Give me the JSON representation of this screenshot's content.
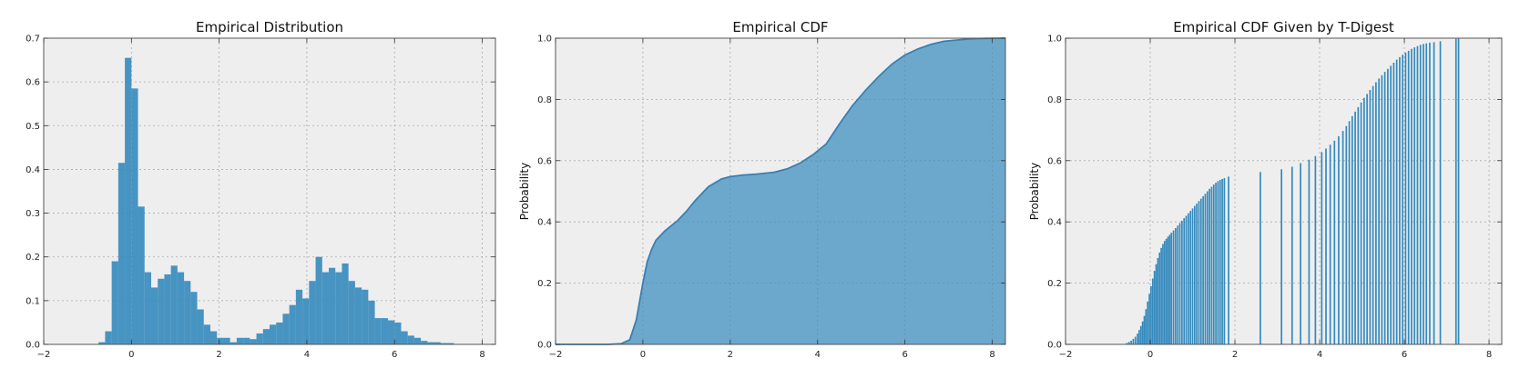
{
  "colors": {
    "histogram_fill": "#348abd",
    "cdf_fill": "#348abd",
    "cdf_line": "#3a7fb0",
    "tdigest_bar": "#348abd"
  },
  "chart_data": [
    {
      "type": "bar",
      "title": "Empirical Distribution",
      "xlabel": "",
      "ylabel": "",
      "xlim": [
        -2,
        8.3
      ],
      "ylim": [
        0,
        0.7
      ],
      "xticks": [
        -2,
        0,
        2,
        4,
        6,
        8
      ],
      "yticks": [
        0.0,
        0.1,
        0.2,
        0.3,
        0.4,
        0.5,
        0.6,
        0.7
      ],
      "grid": true,
      "bin_width": 0.15,
      "bin_start": -0.75,
      "values": [
        0.005,
        0.03,
        0.19,
        0.415,
        0.655,
        0.585,
        0.315,
        0.165,
        0.13,
        0.15,
        0.16,
        0.18,
        0.165,
        0.145,
        0.12,
        0.08,
        0.045,
        0.03,
        0.015,
        0.015,
        0.005,
        0.015,
        0.015,
        0.012,
        0.025,
        0.035,
        0.045,
        0.05,
        0.07,
        0.09,
        0.125,
        0.105,
        0.145,
        0.2,
        0.165,
        0.175,
        0.165,
        0.185,
        0.145,
        0.13,
        0.125,
        0.1,
        0.06,
        0.06,
        0.055,
        0.05,
        0.03,
        0.02,
        0.015,
        0.008,
        0.005,
        0.005,
        0.003,
        0.003
      ]
    },
    {
      "type": "area",
      "title": "Empirical CDF",
      "xlabel": "",
      "ylabel": "Probability",
      "xlim": [
        -2,
        8.3
      ],
      "ylim": [
        0,
        1.0
      ],
      "xticks": [
        -2,
        0,
        2,
        4,
        6,
        8
      ],
      "yticks": [
        0.0,
        0.2,
        0.4,
        0.6,
        0.8,
        1.0
      ],
      "grid": true,
      "x": [
        -0.8,
        -0.5,
        -0.3,
        -0.15,
        0.0,
        0.1,
        0.2,
        0.3,
        0.5,
        0.8,
        1.0,
        1.2,
        1.5,
        1.8,
        2.0,
        2.3,
        2.6,
        3.0,
        3.3,
        3.6,
        3.9,
        4.2,
        4.5,
        4.8,
        5.1,
        5.4,
        5.7,
        6.0,
        6.3,
        6.6,
        6.9,
        7.2,
        7.5,
        7.8,
        8.3
      ],
      "values": [
        0.0,
        0.002,
        0.015,
        0.08,
        0.2,
        0.27,
        0.31,
        0.34,
        0.37,
        0.405,
        0.435,
        0.47,
        0.515,
        0.54,
        0.548,
        0.553,
        0.556,
        0.562,
        0.573,
        0.592,
        0.62,
        0.655,
        0.72,
        0.78,
        0.83,
        0.875,
        0.915,
        0.945,
        0.965,
        0.98,
        0.99,
        0.994,
        0.998,
        0.999,
        1.0
      ]
    },
    {
      "type": "bar",
      "title": "Empirical CDF Given by T-Digest",
      "xlabel": "",
      "ylabel": "Probability",
      "xlim": [
        -2,
        8.3
      ],
      "ylim": [
        0,
        1.0
      ],
      "xticks": [
        -2,
        0,
        2,
        4,
        6,
        8
      ],
      "yticks": [
        0.0,
        0.2,
        0.4,
        0.6,
        0.8,
        1.0
      ],
      "grid": true,
      "x": [
        -0.55,
        -0.5,
        -0.45,
        -0.4,
        -0.35,
        -0.3,
        -0.26,
        -0.22,
        -0.18,
        -0.14,
        -0.1,
        -0.06,
        -0.02,
        0.02,
        0.06,
        0.1,
        0.14,
        0.18,
        0.22,
        0.26,
        0.3,
        0.34,
        0.38,
        0.42,
        0.46,
        0.5,
        0.55,
        0.6,
        0.65,
        0.7,
        0.75,
        0.8,
        0.85,
        0.9,
        0.95,
        1.0,
        1.05,
        1.1,
        1.15,
        1.2,
        1.25,
        1.3,
        1.35,
        1.4,
        1.45,
        1.5,
        1.55,
        1.6,
        1.65,
        1.7,
        1.75,
        1.85,
        2.6,
        3.1,
        3.35,
        3.55,
        3.75,
        3.9,
        4.05,
        4.15,
        4.25,
        4.35,
        4.45,
        4.55,
        4.63,
        4.7,
        4.77,
        4.84,
        4.91,
        4.98,
        5.05,
        5.12,
        5.19,
        5.26,
        5.33,
        5.4,
        5.47,
        5.54,
        5.61,
        5.68,
        5.75,
        5.82,
        5.89,
        5.96,
        6.03,
        6.1,
        6.17,
        6.24,
        6.31,
        6.38,
        6.45,
        6.52,
        6.6,
        6.7,
        6.85,
        7.22,
        7.28
      ],
      "values": [
        0.005,
        0.008,
        0.012,
        0.018,
        0.025,
        0.035,
        0.047,
        0.06,
        0.075,
        0.093,
        0.115,
        0.14,
        0.165,
        0.19,
        0.215,
        0.24,
        0.262,
        0.282,
        0.3,
        0.315,
        0.328,
        0.338,
        0.345,
        0.352,
        0.358,
        0.365,
        0.372,
        0.38,
        0.388,
        0.396,
        0.404,
        0.412,
        0.42,
        0.428,
        0.436,
        0.444,
        0.452,
        0.46,
        0.468,
        0.476,
        0.484,
        0.492,
        0.5,
        0.508,
        0.515,
        0.522,
        0.528,
        0.533,
        0.537,
        0.54,
        0.543,
        0.548,
        0.563,
        0.572,
        0.58,
        0.592,
        0.603,
        0.615,
        0.628,
        0.64,
        0.652,
        0.665,
        0.68,
        0.697,
        0.713,
        0.729,
        0.745,
        0.76,
        0.775,
        0.79,
        0.805,
        0.818,
        0.831,
        0.844,
        0.856,
        0.868,
        0.879,
        0.89,
        0.9,
        0.91,
        0.92,
        0.93,
        0.938,
        0.946,
        0.953,
        0.959,
        0.965,
        0.97,
        0.974,
        0.978,
        0.981,
        0.983,
        0.985,
        0.987,
        0.99,
        0.998,
        1.0
      ]
    }
  ]
}
